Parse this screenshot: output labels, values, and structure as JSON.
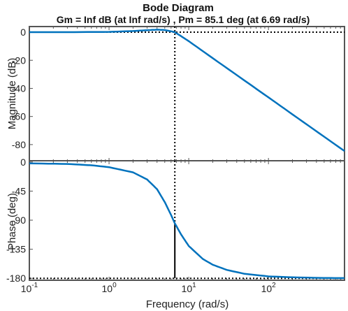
{
  "chart_data": {
    "type": "line",
    "title": "Bode Diagram",
    "subtitle": "Gm = Inf dB (at Inf rad/s) ,  Pm = 85.1 deg (at 6.69 rad/s)",
    "xlabel": "Frequency  (rad/s)",
    "x_scale": "log",
    "xlim": [
      0.1,
      900
    ],
    "x_ticks": [
      0.1,
      1,
      10,
      100
    ],
    "x_tick_labels": [
      {
        "base": "10",
        "exp": "-1"
      },
      {
        "base": "10",
        "exp": "0"
      },
      {
        "base": "10",
        "exp": "1"
      },
      {
        "base": "10",
        "exp": "2"
      }
    ],
    "grid": false,
    "line_color": "#0072BD",
    "marker_color": "#000000",
    "crossover_frequency": 6.69,
    "phase_at_crossover": -94.9,
    "panels": [
      {
        "name": "magnitude",
        "ylabel": "Magnitude (dB)",
        "ylim": [
          -92,
          4
        ],
        "y_ticks": [
          0,
          -20,
          -40,
          -60,
          -80
        ],
        "y_tick_labels": [
          "0",
          "-20",
          "-40",
          "-60",
          "-80"
        ],
        "reference_value": 0,
        "series": [
          {
            "x": [
              0.1,
              0.3,
              1,
              2,
              3,
              4,
              5,
              6,
              6.69,
              8,
              10,
              20,
              50,
              100,
              200,
              500,
              900
            ],
            "y": [
              0,
              0,
              0.2,
              0.8,
              1.4,
              1.8,
              1.5,
              0.6,
              0,
              -2.8,
              -6.4,
              -18.5,
              -34.4,
              -46.4,
              -58.5,
              -74.4,
              -84.6
            ]
          }
        ]
      },
      {
        "name": "phase",
        "ylabel": "Phase (deg)",
        "ylim": [
          -183,
          2
        ],
        "y_ticks": [
          0,
          -45,
          -90,
          -135,
          -180
        ],
        "y_tick_labels": [
          "0",
          "-45",
          "-90",
          "-135",
          "-180"
        ],
        "reference_value": -180,
        "series": [
          {
            "x": [
              0.1,
              0.3,
              0.6,
              1,
              2,
              3,
              4,
              5,
              6,
              6.69,
              8,
              10,
              15,
              20,
              30,
              50,
              100,
              200,
              500,
              900
            ],
            "y": [
              -2,
              -3,
              -5,
              -8,
              -16,
              -27,
              -42,
              -62,
              -82,
              -94.9,
              -112,
              -130,
              -150,
              -159,
              -167,
              -173,
              -177,
              -178.5,
              -179.5,
              -179.7
            ]
          }
        ]
      }
    ]
  }
}
